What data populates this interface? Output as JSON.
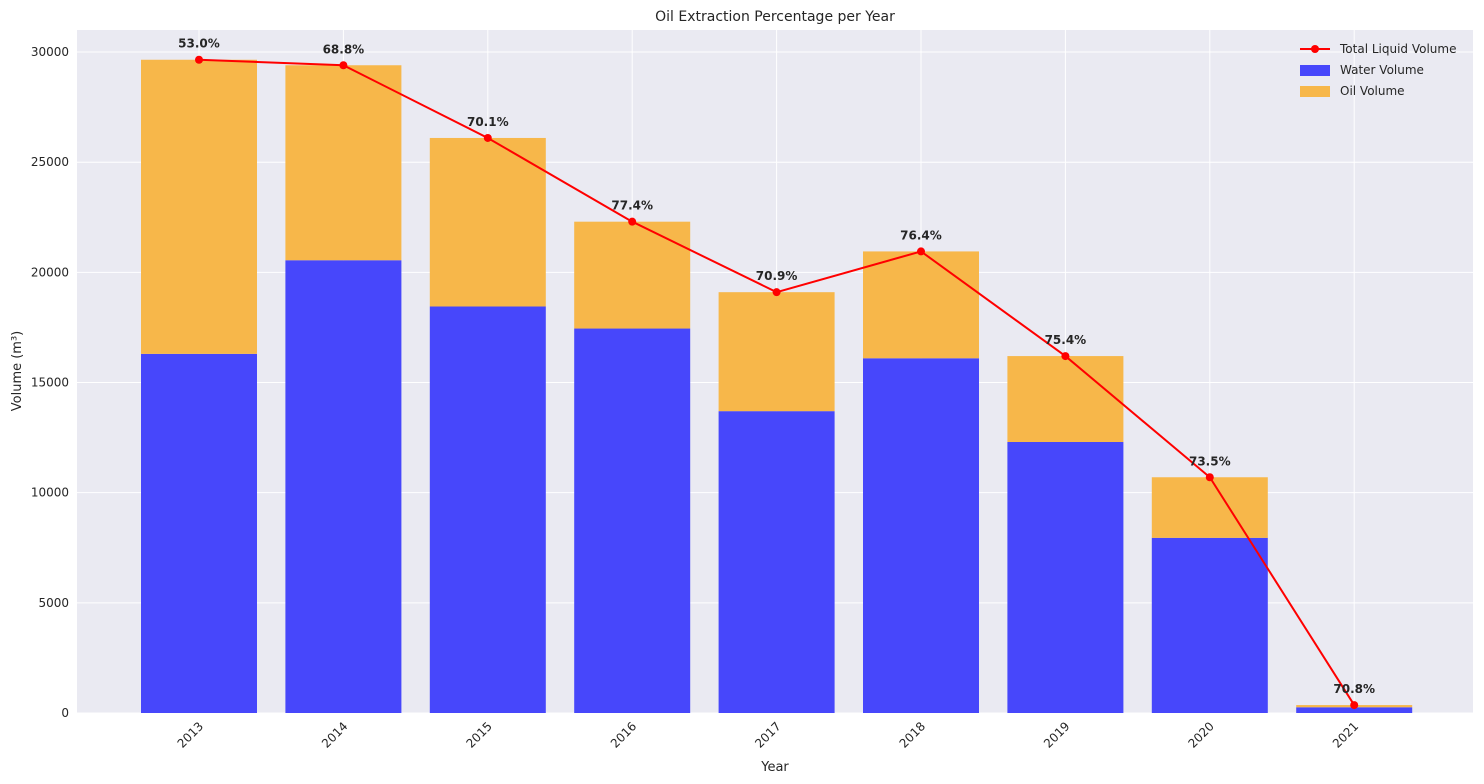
{
  "chart_data": {
    "type": "bar",
    "stacked": true,
    "title": "Oil Extraction Percentage per Year",
    "xlabel": "Year",
    "ylabel": "Volume (m³)",
    "ylim": [
      0,
      31000
    ],
    "yticks": [
      0,
      5000,
      10000,
      15000,
      20000,
      25000,
      30000
    ],
    "grid": true,
    "legend_position": "top-right",
    "categories": [
      "2013",
      "2014",
      "2015",
      "2016",
      "2017",
      "2018",
      "2019",
      "2020",
      "2021"
    ],
    "series": [
      {
        "name": "Water Volume",
        "kind": "bar",
        "color": "#4747fb",
        "values": [
          16300,
          20550,
          18450,
          17450,
          13700,
          16100,
          12300,
          7950,
          260
        ]
      },
      {
        "name": "Oil Volume",
        "kind": "bar",
        "color": "#f7b74a",
        "values": [
          13350,
          8850,
          7650,
          4850,
          5400,
          4850,
          3900,
          2750,
          100
        ]
      },
      {
        "name": "Total Liquid Volume",
        "kind": "line",
        "color": "#ff0000",
        "values": [
          29650,
          29400,
          26100,
          22300,
          19100,
          20950,
          16200,
          10700,
          360
        ]
      }
    ],
    "annotations": [
      "53.0%",
      "68.8%",
      "70.1%",
      "77.4%",
      "70.9%",
      "76.4%",
      "75.4%",
      "73.5%",
      "70.8%"
    ]
  }
}
